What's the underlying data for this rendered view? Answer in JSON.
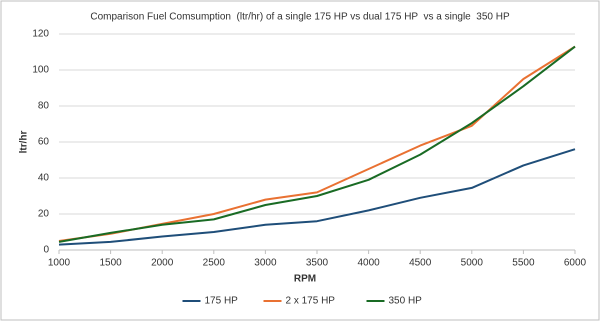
{
  "chart_data": {
    "type": "line",
    "title": "Comparison Fuel Comsumption  (ltr/hr) of a single 175 HP vs dual 175 HP  vs a single  350 HP",
    "x_label": "RPM",
    "y_label": "ltr/hr",
    "x": [
      1000,
      1500,
      2000,
      2500,
      3000,
      3500,
      4000,
      4500,
      5000,
      5500,
      6000
    ],
    "series": [
      {
        "name": "175 HP",
        "color": "#1f4e79",
        "values": [
          3,
          4.5,
          7.5,
          10,
          14,
          16,
          22,
          29,
          34.5,
          47,
          56
        ]
      },
      {
        "name": "2 x 175 HP",
        "color": "#e97132",
        "values": [
          5,
          9,
          14.5,
          20,
          28,
          32,
          45,
          58,
          69,
          95,
          113
        ]
      },
      {
        "name": "350 HP",
        "color": "#196b24",
        "values": [
          4.5,
          9.5,
          14,
          17,
          25,
          30,
          39,
          53,
          70.5,
          91,
          113
        ]
      }
    ],
    "xlim": [
      1000,
      6000
    ],
    "xticks": [
      1000,
      1500,
      2000,
      2500,
      3000,
      3500,
      4000,
      4500,
      5000,
      5500,
      6000
    ],
    "ylim": [
      0,
      120
    ],
    "yticks": [
      0,
      20,
      40,
      60,
      80,
      100,
      120
    ],
    "grid": true,
    "legend": "bottom"
  }
}
